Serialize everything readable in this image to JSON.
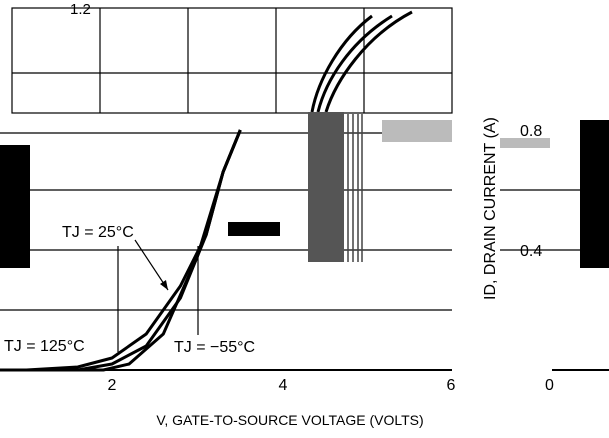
{
  "chart_data": {
    "type": "line",
    "xlabel": "V, GATE-TO-SOURCE VOLTAGE (VOLTS)",
    "ylabel": "ID, DRAIN CURRENT (A)",
    "x_ticks": [
      "2",
      "4",
      "6"
    ],
    "y_ticks_left": [
      "1.2"
    ],
    "y_ticks_right": [
      "0.8",
      "0.4",
      "0"
    ],
    "annotations": {
      "tj_25": "TJ = 25°C",
      "tj_125": "TJ = 125°C",
      "tj_neg55": "TJ = −55°C"
    },
    "series": [
      {
        "name": "TJ = 125°C",
        "points": [
          [
            0.0,
            0.0
          ],
          [
            1.0,
            0.0
          ],
          [
            1.6,
            0.01
          ],
          [
            2.0,
            0.04
          ],
          [
            2.4,
            0.12
          ],
          [
            2.8,
            0.28
          ],
          [
            3.1,
            0.45
          ],
          [
            3.3,
            0.66
          ],
          [
            3.5,
            0.8
          ]
        ]
      },
      {
        "name": "TJ = 25°C",
        "points": [
          [
            0.0,
            0.0
          ],
          [
            1.6,
            0.0
          ],
          [
            2.0,
            0.02
          ],
          [
            2.4,
            0.08
          ],
          [
            2.8,
            0.24
          ],
          [
            3.1,
            0.45
          ],
          [
            3.3,
            0.66
          ],
          [
            3.5,
            0.8
          ]
        ]
      },
      {
        "name": "TJ = −55°C",
        "points": [
          [
            0.0,
            0.0
          ],
          [
            1.9,
            0.0
          ],
          [
            2.2,
            0.02
          ],
          [
            2.6,
            0.12
          ],
          [
            3.0,
            0.38
          ],
          [
            3.3,
            0.66
          ],
          [
            3.5,
            0.8
          ]
        ]
      }
    ]
  }
}
